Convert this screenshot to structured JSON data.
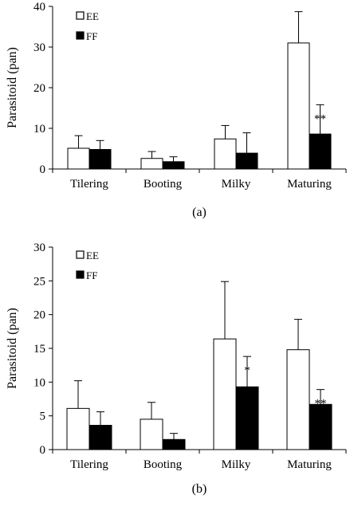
{
  "chart_data": [
    {
      "type": "bar",
      "panel_label": "(a)",
      "ylabel": "Parasitoid (pan)",
      "ylim": [
        0,
        40
      ],
      "yticks": [
        0,
        10,
        20,
        30,
        40
      ],
      "categories": [
        "Tilering",
        "Booting",
        "Milky",
        "Maturing"
      ],
      "legend_position": "top-left",
      "series": [
        {
          "name": "EE",
          "color": "#ffffff",
          "values": [
            5.1,
            2.6,
            7.4,
            31.0
          ],
          "errors": [
            3.1,
            1.7,
            3.3,
            7.7
          ]
        },
        {
          "name": "FF",
          "color": "#000000",
          "values": [
            4.8,
            1.8,
            3.9,
            8.6
          ],
          "errors": [
            2.2,
            1.2,
            5.0,
            7.2
          ]
        }
      ],
      "annotations": [
        {
          "category": "Maturing",
          "series": "FF",
          "text": "**"
        }
      ]
    },
    {
      "type": "bar",
      "panel_label": "(b)",
      "ylabel": "Parasitoid (pan)",
      "ylim": [
        0,
        30
      ],
      "yticks": [
        0,
        5,
        10,
        15,
        20,
        25,
        30
      ],
      "categories": [
        "Tilering",
        "Booting",
        "Milky",
        "Maturing"
      ],
      "legend_position": "top-left",
      "series": [
        {
          "name": "EE",
          "color": "#ffffff",
          "values": [
            6.1,
            4.5,
            16.4,
            14.8
          ],
          "errors": [
            4.1,
            2.5,
            8.5,
            4.5
          ]
        },
        {
          "name": "FF",
          "color": "#000000",
          "values": [
            3.6,
            1.5,
            9.3,
            6.7
          ],
          "errors": [
            2.0,
            0.9,
            4.5,
            2.2
          ]
        }
      ],
      "annotations": [
        {
          "category": "Milky",
          "series": "FF",
          "text": "*"
        },
        {
          "category": "Maturing",
          "series": "FF",
          "text": "**"
        }
      ]
    }
  ]
}
